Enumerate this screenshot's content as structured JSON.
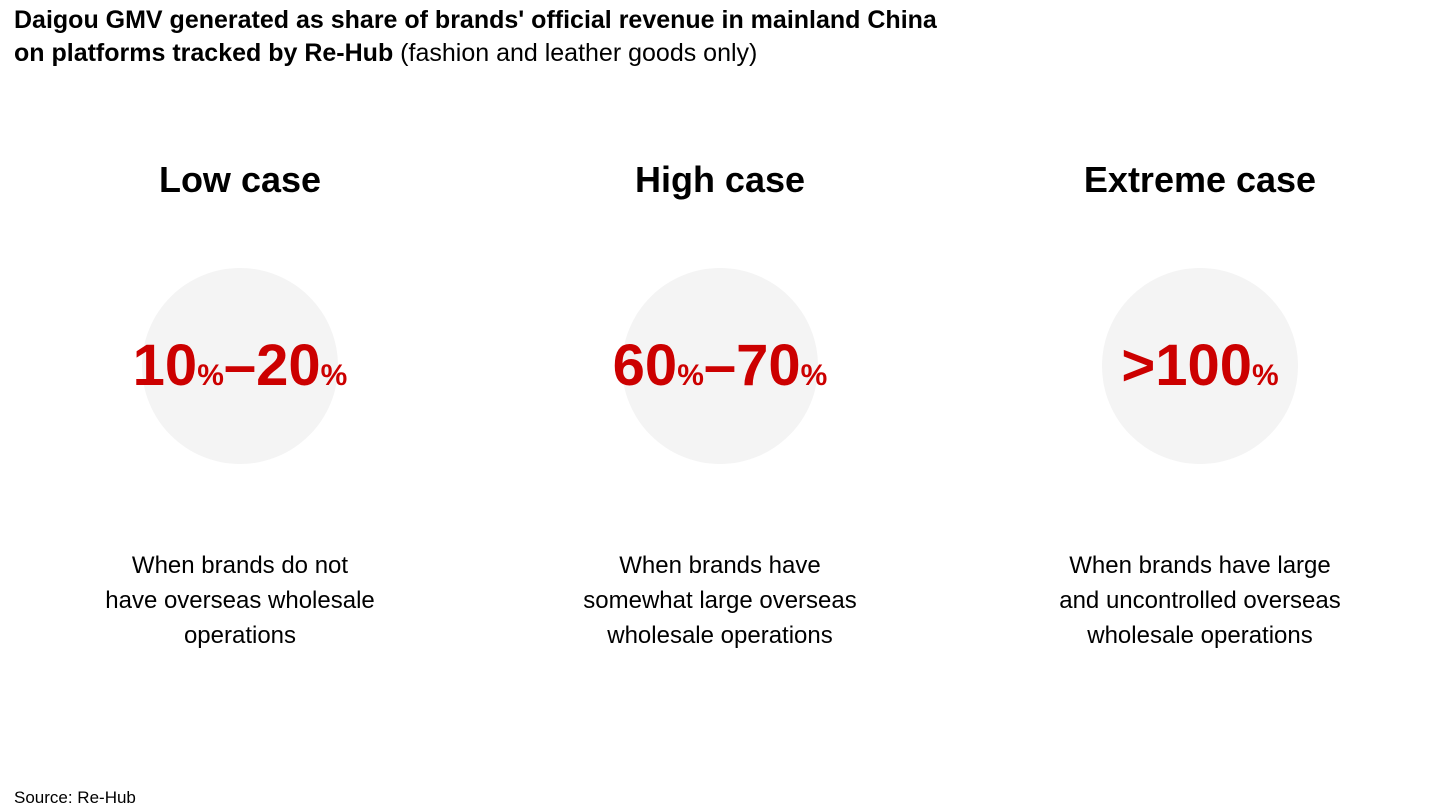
{
  "title": {
    "line1_bold": "Daigou GMV generated as share of brands' official revenue in mainland China",
    "line2_bold": "on platforms tracked by Re-Hub",
    "line2_regular": " (fashion and leather goods only)"
  },
  "colors": {
    "accent": "#cc0000",
    "circle_bg": "#f4f4f4"
  },
  "cases": [
    {
      "label": "Low case",
      "value": {
        "a": "10",
        "a_pct": "%",
        "sep": "–",
        "b": "20",
        "b_pct": "%"
      },
      "description": "When brands do not\nhave overseas wholesale\noperations"
    },
    {
      "label": "High case",
      "value": {
        "a": "60",
        "a_pct": "%",
        "sep": "–",
        "b": "70",
        "b_pct": "%"
      },
      "description": "When brands have\nsomewhat large overseas\nwholesale operations"
    },
    {
      "label": "Extreme case",
      "value": {
        "a": ">100",
        "a_pct": "%"
      },
      "description": "When brands have large\nand uncontrolled overseas\nwholesale operations"
    }
  ],
  "source": "Source: Re-Hub",
  "chart_data": {
    "type": "table",
    "title": "Daigou GMV generated as share of brands' official revenue in mainland China on platforms tracked by Re-Hub (fashion and leather goods only)",
    "categories": [
      "Low case",
      "High case",
      "Extreme case"
    ],
    "values": [
      "10%–20%",
      "60%–70%",
      ">100%"
    ],
    "series": [
      {
        "name": "lower_bound_pct",
        "values": [
          10,
          60,
          100
        ]
      },
      {
        "name": "upper_bound_pct",
        "values": [
          20,
          70,
          null
        ]
      }
    ],
    "annotations": [
      "When brands do not have overseas wholesale operations",
      "When brands have somewhat large overseas wholesale operations",
      "When brands have large and uncontrolled overseas wholesale operations"
    ],
    "legend_position": "none",
    "grid": false,
    "source": "Source: Re-Hub"
  }
}
